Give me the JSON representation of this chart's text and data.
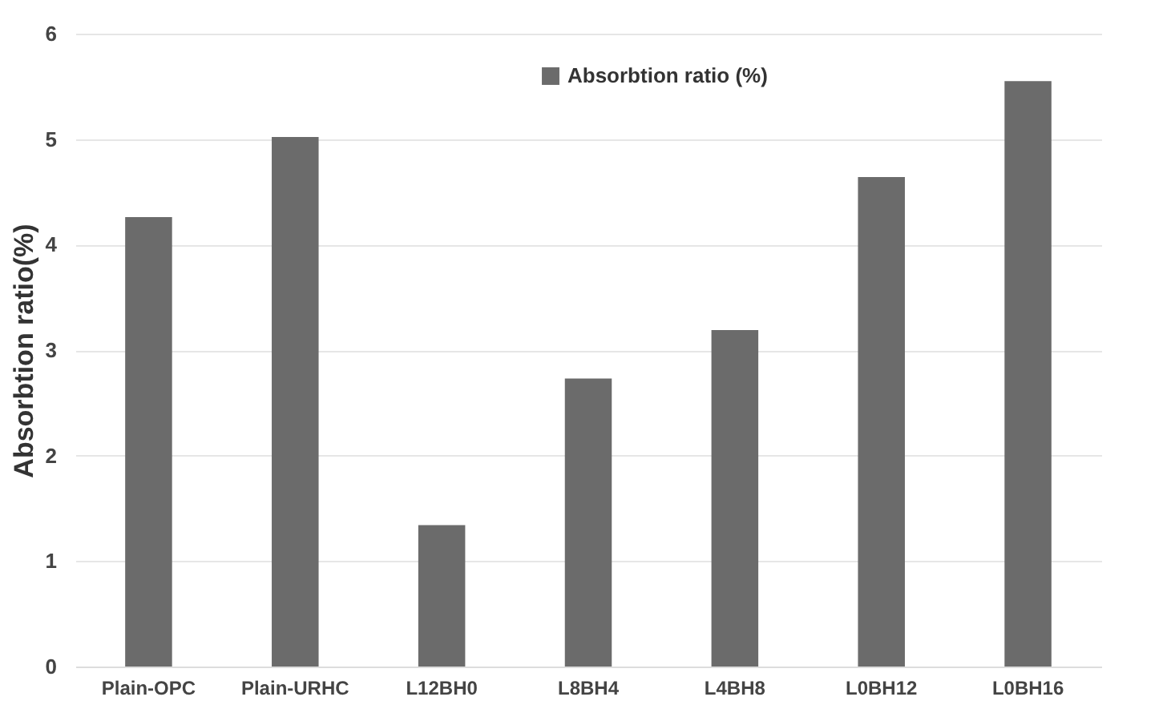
{
  "chart_data": {
    "type": "bar",
    "ylabel": "Absorbtion ratio(%)",
    "categories": [
      "Plain-OPC",
      "Plain-URHC",
      "L12BH0",
      "L8BH4",
      "L4BH8",
      "L0BH12",
      "L0BH16"
    ],
    "series": [
      {
        "name": "Absorbtion ratio (%)",
        "color": "#6b6b6b",
        "values": [
          4.26,
          5.02,
          1.34,
          2.73,
          3.19,
          4.64,
          5.55
        ]
      }
    ],
    "ylim": [
      0,
      6
    ],
    "yticks": [
      0,
      1,
      2,
      3,
      4,
      5,
      6
    ],
    "grid": "y",
    "legend": "top"
  }
}
